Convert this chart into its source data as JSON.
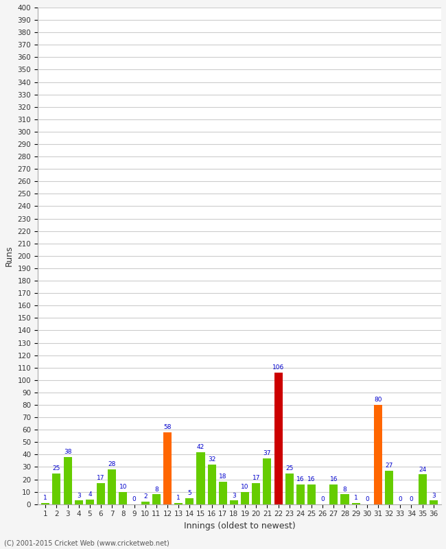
{
  "xlabel": "Innings (oldest to newest)",
  "ylabel": "Runs",
  "copyright": "(C) 2001-2015 Cricket Web (www.cricketweb.net)",
  "innings": [
    1,
    2,
    3,
    4,
    5,
    6,
    7,
    8,
    9,
    10,
    11,
    12,
    13,
    14,
    15,
    16,
    17,
    18,
    19,
    20,
    21,
    22,
    23,
    24,
    25,
    26,
    27,
    28,
    29,
    30,
    31,
    32,
    33,
    34,
    35,
    36
  ],
  "values": [
    1,
    25,
    38,
    3,
    4,
    17,
    28,
    10,
    0,
    2,
    8,
    58,
    1,
    5,
    42,
    32,
    18,
    3,
    10,
    17,
    37,
    106,
    25,
    16,
    16,
    0,
    16,
    8,
    1,
    0,
    80,
    27,
    0,
    0,
    24,
    3
  ],
  "colors": [
    "#66cc00",
    "#66cc00",
    "#66cc00",
    "#66cc00",
    "#66cc00",
    "#66cc00",
    "#66cc00",
    "#66cc00",
    "#66cc00",
    "#66cc00",
    "#66cc00",
    "#ff6600",
    "#66cc00",
    "#66cc00",
    "#66cc00",
    "#66cc00",
    "#66cc00",
    "#66cc00",
    "#66cc00",
    "#66cc00",
    "#66cc00",
    "#cc0000",
    "#66cc00",
    "#66cc00",
    "#66cc00",
    "#66cc00",
    "#66cc00",
    "#66cc00",
    "#66cc00",
    "#66cc00",
    "#ff6600",
    "#66cc00",
    "#66cc00",
    "#66cc00",
    "#66cc00",
    "#66cc00"
  ],
  "bg_color": "#f5f5f5",
  "plot_bg_color": "#ffffff",
  "grid_color": "#cccccc",
  "label_color": "#0000cc",
  "yticks": [
    0,
    10,
    20,
    30,
    40,
    50,
    60,
    70,
    80,
    90,
    100,
    110,
    120,
    130,
    140,
    150,
    160,
    170,
    180,
    190,
    200,
    210,
    220,
    230,
    240,
    250,
    260,
    270,
    280,
    290,
    300,
    310,
    320,
    330,
    340,
    350,
    360,
    370,
    380,
    390,
    400
  ],
  "ylim": [
    0,
    400
  ]
}
